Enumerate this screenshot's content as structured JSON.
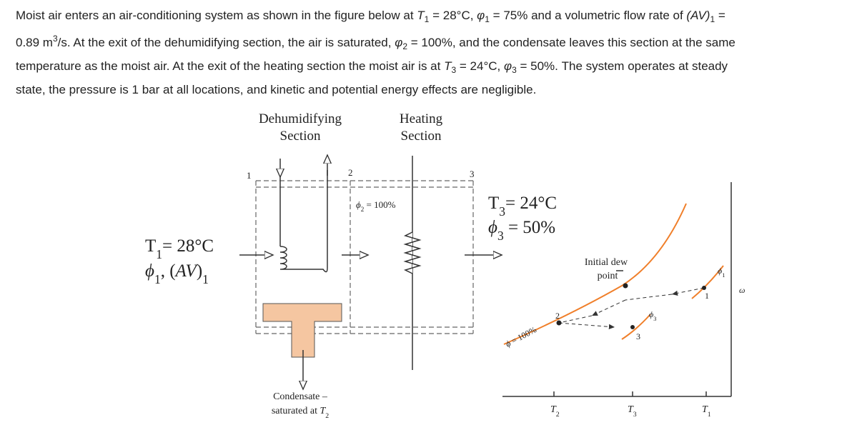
{
  "problem": {
    "lines": [
      [
        "Moist air enters an air-conditioning system as shown in the figure below at ",
        {
          "i": "T"
        },
        {
          "sub": "1"
        },
        " = 28°C, ",
        {
          "i": "φ"
        },
        {
          "sub": "1"
        },
        " = 75% and a volumetric flow rate of ",
        {
          "i": "(AV)"
        },
        {
          "sub": "1"
        },
        " ="
      ],
      [
        "0.89 m",
        {
          "sup": "3"
        },
        "/s. At the exit of the dehumidifying section, the air is saturated, ",
        {
          "i": "φ"
        },
        {
          "sub": "2"
        },
        " = 100%, and the condensate leaves this section at the same"
      ],
      [
        "temperature as the moist air. At the exit of the heating section the moist air is at ",
        {
          "i": "T"
        },
        {
          "sub": "3"
        },
        " = 24°C, ",
        {
          "i": "φ"
        },
        {
          "sub": "3"
        },
        " = 50%. The system operates at steady"
      ],
      [
        "state, the pressure is 1 bar at all locations, and kinetic and potential energy effects are negligible."
      ]
    ]
  },
  "figure": {
    "dehumidifying": [
      "Dehumidifying",
      "Section"
    ],
    "heating": [
      "Heating",
      "Section"
    ],
    "states": [
      "1",
      "2",
      "3"
    ],
    "phi2": [
      {
        "i": "ϕ"
      },
      {
        "sub": "2"
      },
      " = 100%"
    ],
    "T3": [
      "T",
      {
        "sub": "3"
      },
      "= 24°C"
    ],
    "phi3": [
      {
        "i": "ϕ"
      },
      {
        "sub": "3"
      },
      " = 50%"
    ],
    "T1": [
      "T",
      {
        "sub": "1"
      },
      "= 28°C"
    ],
    "phi1": [
      {
        "i": "ϕ"
      },
      {
        "sub": "1"
      },
      ", (",
      {
        "i": "AV"
      },
      ")",
      {
        "sub": "1"
      }
    ],
    "condensate": [
      "Condensate –",
      [
        "saturated at ",
        {
          "i": "T"
        },
        {
          "sub": "2"
        }
      ]
    ],
    "dew_point": [
      "Initial dew",
      "point"
    ],
    "saturation": [
      {
        "i": "ϕ"
      },
      " = 100%"
    ],
    "chart_points": [
      "2",
      "3",
      "1"
    ],
    "phi3_curve": [
      {
        "i": "ϕ"
      },
      {
        "sub": "3"
      }
    ],
    "phi1_curve": [
      {
        "i": "ϕ"
      },
      {
        "sub": "1"
      }
    ],
    "omega": [
      {
        "i": "ω"
      }
    ],
    "t_ticks": [
      [
        {
          "i": "T"
        },
        {
          "sub": "2"
        }
      ],
      [
        {
          "i": "T"
        },
        {
          "sub": "3"
        }
      ],
      [
        {
          "i": "T"
        },
        {
          "sub": "1"
        }
      ]
    ]
  }
}
